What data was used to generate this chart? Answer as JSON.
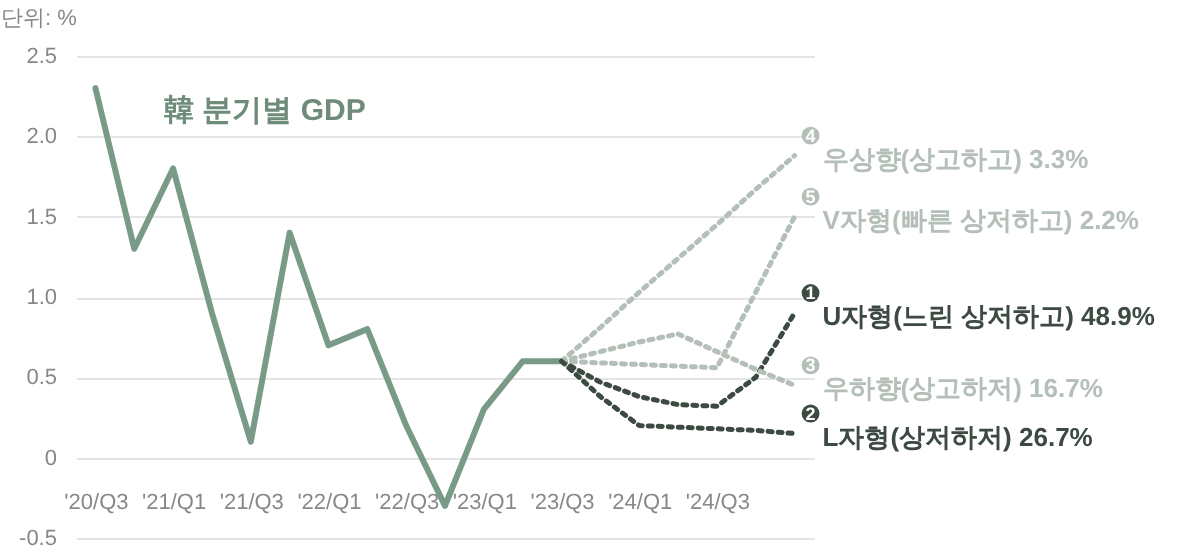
{
  "chart_data": {
    "type": "line",
    "title": "韓 분기별 GDP",
    "ylabel": "단위: %",
    "categories": [
      "'20/Q3",
      null,
      "'21/Q1",
      null,
      "'21/Q3",
      null,
      "'22/Q1",
      null,
      "'22/Q3",
      null,
      "'23/Q1",
      null,
      "'23/Q3",
      null,
      "'24/Q1",
      null,
      "'24/Q3",
      null,
      null
    ],
    "ylim": [
      -0.5,
      2.5
    ],
    "yticks": [
      -0.5,
      {
        "value": 0,
        "label": "0"
      },
      0.5,
      {
        "value": 1,
        "label": "1.0"
      },
      1.5,
      {
        "value": 2,
        "label": "2.0"
      },
      2.5
    ],
    "grid": "y",
    "legend": "right",
    "marker": "none",
    "series": [
      {
        "color": "#7a9a88",
        "line_style": "solid",
        "values": [
          2.3,
          1.3,
          1.8,
          0.9,
          0.1,
          1.4,
          0.7,
          0.8,
          0.2,
          -0.3,
          0.3,
          0.6,
          0.6,
          null,
          null,
          null,
          null,
          null,
          null
        ]
      },
      {
        "name": "우상향(상고하고) 3.3%",
        "color": "#b4bfb8",
        "line_style": "dotted",
        "values": [
          null,
          null,
          null,
          null,
          null,
          null,
          null,
          null,
          null,
          null,
          null,
          null,
          0.6,
          0.81,
          1.03,
          1.24,
          1.45,
          1.67,
          1.88
        ]
      },
      {
        "name": "V자형(빠른 상저하고) 2.2%",
        "color": "#b4bfb8",
        "line_style": "dotted",
        "values": [
          null,
          null,
          null,
          null,
          null,
          null,
          null,
          null,
          null,
          null,
          null,
          null,
          0.6,
          0.59,
          0.58,
          0.57,
          0.56,
          1.03,
          1.5
        ]
      },
      {
        "name": "U자형(느린 상저하고) 48.9%",
        "color": "#3d4a42",
        "line_style": "dotted",
        "values": [
          null,
          null,
          null,
          null,
          null,
          null,
          null,
          null,
          null,
          null,
          null,
          null,
          0.6,
          0.47,
          0.38,
          0.33,
          0.32,
          0.5,
          0.9
        ]
      },
      {
        "name": "우하향(상고하저) 16.7%",
        "color": "#b4bfb8",
        "line_style": "dotted",
        "values": [
          null,
          null,
          null,
          null,
          null,
          null,
          null,
          null,
          null,
          null,
          null,
          null,
          0.6,
          0.66,
          0.72,
          0.77,
          0.66,
          0.55,
          0.45
        ]
      },
      {
        "name": "L자형(상저하저) 26.7%",
        "color": "#3d4a42",
        "line_style": "dotted",
        "values": [
          null,
          null,
          null,
          null,
          null,
          null,
          null,
          null,
          null,
          null,
          null,
          null,
          0.6,
          0.38,
          0.2,
          0.19,
          0.18,
          0.17,
          0.15
        ]
      }
    ],
    "annotations": [
      "4",
      "5",
      "1",
      "3",
      "2"
    ]
  }
}
